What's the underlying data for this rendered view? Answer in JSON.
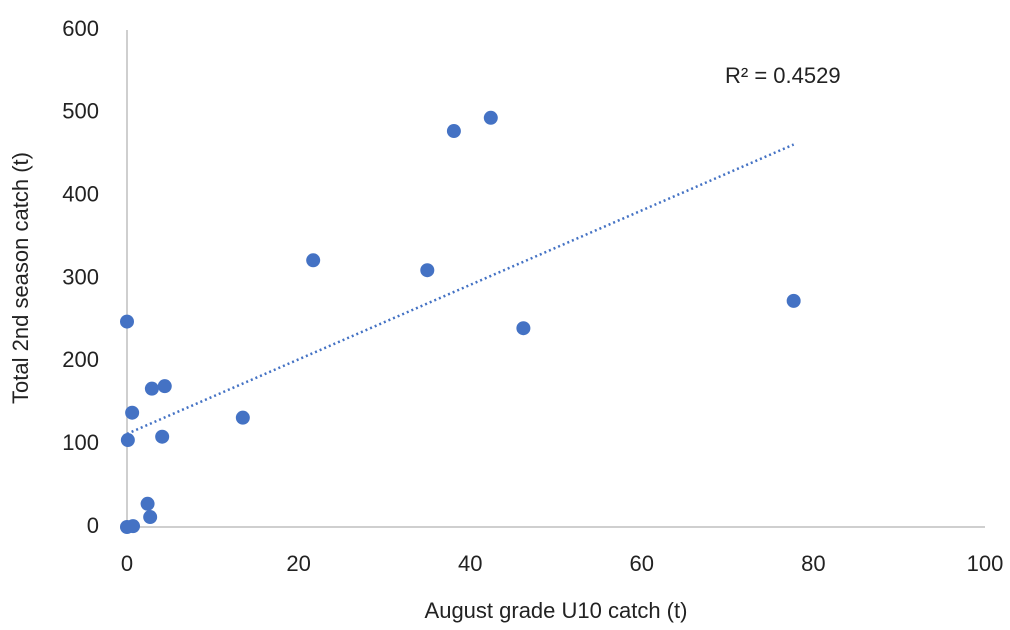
{
  "chart_data": {
    "type": "scatter",
    "x_label": "August grade U10 catch (t)",
    "y_label": "Total 2nd season catch (t)",
    "annotation": "R² = 0.4529",
    "x": [
      0,
      0.7,
      2.4,
      2.7,
      0,
      2.9,
      4.4,
      0.6,
      0.1,
      4.1,
      13.5,
      21.7,
      35,
      38.1,
      42.4,
      46.2,
      77.7
    ],
    "values": [
      0,
      1,
      28,
      12,
      248,
      167,
      170,
      138,
      105,
      109,
      132,
      322,
      310,
      478,
      494,
      240,
      273
    ],
    "color": "#4472c4",
    "trendline": "linear",
    "xlim": [
      0,
      100
    ],
    "xticks": [
      0,
      20,
      40,
      60,
      80,
      100
    ],
    "ylim": [
      0,
      600
    ],
    "yticks": [
      0,
      100,
      200,
      300,
      400,
      500,
      600
    ],
    "grid": false
  }
}
